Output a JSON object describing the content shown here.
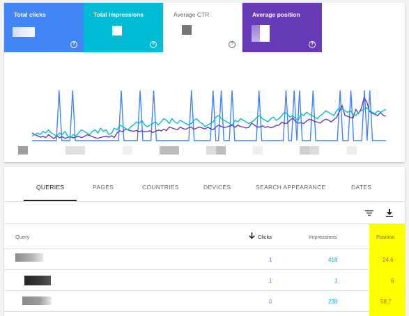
{
  "metrics": {
    "clicks": {
      "label": "Total clicks",
      "help": "?"
    },
    "impressions": {
      "label": "Total impressions",
      "help": "?"
    },
    "ctr": {
      "label": "Average CTR",
      "help": "?"
    },
    "position": {
      "label": "Average position",
      "help": "?"
    }
  },
  "colors": {
    "clicks": "#4285f4",
    "impressions": "#00bcd4",
    "ctr": "#ffffff",
    "position": "#673ab7",
    "highlight": "#ffff00"
  },
  "tabs": [
    {
      "label": "QUERIES",
      "active": true
    },
    {
      "label": "PAGES",
      "active": false
    },
    {
      "label": "COUNTRIES",
      "active": false
    },
    {
      "label": "DEVICES",
      "active": false
    },
    {
      "label": "SEARCH APPEARANCE",
      "active": false
    },
    {
      "label": "DATES",
      "active": false
    }
  ],
  "toolbar": {
    "filter_icon": "filter-icon",
    "download_icon": "download-icon"
  },
  "table": {
    "headers": {
      "query": "Query",
      "clicks": "Clicks",
      "impressions": "Impressions",
      "position": "Position"
    },
    "sort_icon": "arrow-down-icon",
    "rows": [
      {
        "clicks": "1",
        "impressions": "418",
        "position": "24.6"
      },
      {
        "clicks": "1",
        "impressions": "1",
        "position": "6"
      },
      {
        "clicks": "0",
        "impressions": "238",
        "position": "58.7"
      }
    ]
  },
  "chart_data": {
    "type": "line",
    "series": [
      {
        "values": [
          0,
          0,
          0,
          0,
          0,
          0,
          0,
          0,
          0,
          0,
          1,
          0,
          0,
          0,
          0,
          1,
          0,
          0,
          0,
          0,
          0,
          0,
          0,
          0,
          0,
          0,
          0,
          0,
          0,
          0,
          0,
          0,
          0,
          1,
          0,
          0,
          0,
          0,
          0,
          0,
          1,
          0,
          0,
          0,
          0,
          1,
          0,
          0,
          0,
          0,
          0,
          0,
          0,
          0,
          0,
          0,
          0,
          0,
          0,
          1,
          0,
          0,
          0,
          0,
          0,
          0,
          0,
          1,
          0,
          0,
          1,
          0,
          0,
          0,
          1,
          0,
          0,
          0,
          0,
          0,
          0,
          0,
          0,
          0,
          1,
          0,
          0,
          0,
          0,
          0,
          0,
          0,
          0,
          0,
          1,
          0,
          0,
          1,
          0,
          1,
          0,
          0,
          0,
          0,
          1,
          0,
          0,
          0,
          0,
          0,
          0,
          0,
          0,
          0,
          1,
          0,
          0,
          0,
          1,
          0,
          0,
          0,
          0,
          1,
          0,
          1,
          0,
          0,
          0,
          0,
          0,
          0
        ]
      },
      {
        "values": [
          120,
          110,
          105,
          98,
          102,
          95,
          110,
          100,
          90,
          105,
          95,
          100,
          92,
          96,
          100,
          94,
          98,
          102,
          95,
          100,
          110,
          106,
          100,
          95,
          92,
          96,
          100,
          102,
          98,
          105,
          96,
          120,
          130,
          125,
          140,
          135,
          130,
          128,
          132,
          126,
          130,
          125,
          128,
          130,
          122,
          128,
          134,
          130,
          138,
          132,
          150,
          145,
          140,
          136,
          150,
          142,
          138,
          146,
          150,
          138,
          144,
          150,
          145,
          140,
          148,
          142,
          136,
          150,
          160,
          152,
          148,
          150,
          155,
          158,
          148,
          160,
          152,
          150,
          145,
          148,
          170,
          160,
          150,
          150,
          156,
          148,
          152,
          146,
          150,
          158,
          160,
          175,
          168,
          170,
          185,
          196,
          180,
          170,
          172,
          168,
          180,
          190,
          186,
          178,
          175,
          170,
          182,
          190,
          186,
          176,
          188,
          200,
          230,
          260,
          210,
          205,
          200,
          196,
          240,
          220,
          245,
          300,
          280,
          230,
          220,
          215,
          208,
          225,
          210,
          205
        ]
      },
      {
        "values": [
          20,
          21,
          22,
          21,
          23,
          22,
          24,
          22,
          21,
          20,
          22,
          21,
          23,
          20,
          19,
          21,
          20,
          22,
          24,
          23,
          22,
          21,
          23,
          24,
          22,
          25,
          23,
          24,
          21,
          22,
          25,
          24,
          27,
          26,
          25,
          24,
          26,
          27,
          29,
          28,
          30,
          27,
          26,
          27,
          28,
          29,
          27,
          29,
          31,
          30,
          28,
          31,
          29,
          28,
          30,
          29,
          28,
          27,
          28,
          30,
          31,
          29,
          28,
          26,
          27,
          28,
          29,
          32,
          33,
          31,
          30,
          29,
          28,
          27,
          30,
          29,
          31,
          30,
          29,
          28,
          29,
          30,
          32,
          33,
          31,
          30,
          29,
          31,
          32,
          30,
          31,
          33,
          35,
          34,
          32,
          33,
          31,
          30,
          34,
          33,
          35,
          34,
          33,
          32,
          31,
          33,
          34,
          36,
          35,
          34,
          33,
          36,
          38,
          37,
          36,
          35,
          36,
          34,
          33,
          35,
          36,
          37,
          38,
          36,
          35,
          34,
          36,
          35,
          36,
          37
        ]
      }
    ],
    "x_labels_hidden": true
  }
}
